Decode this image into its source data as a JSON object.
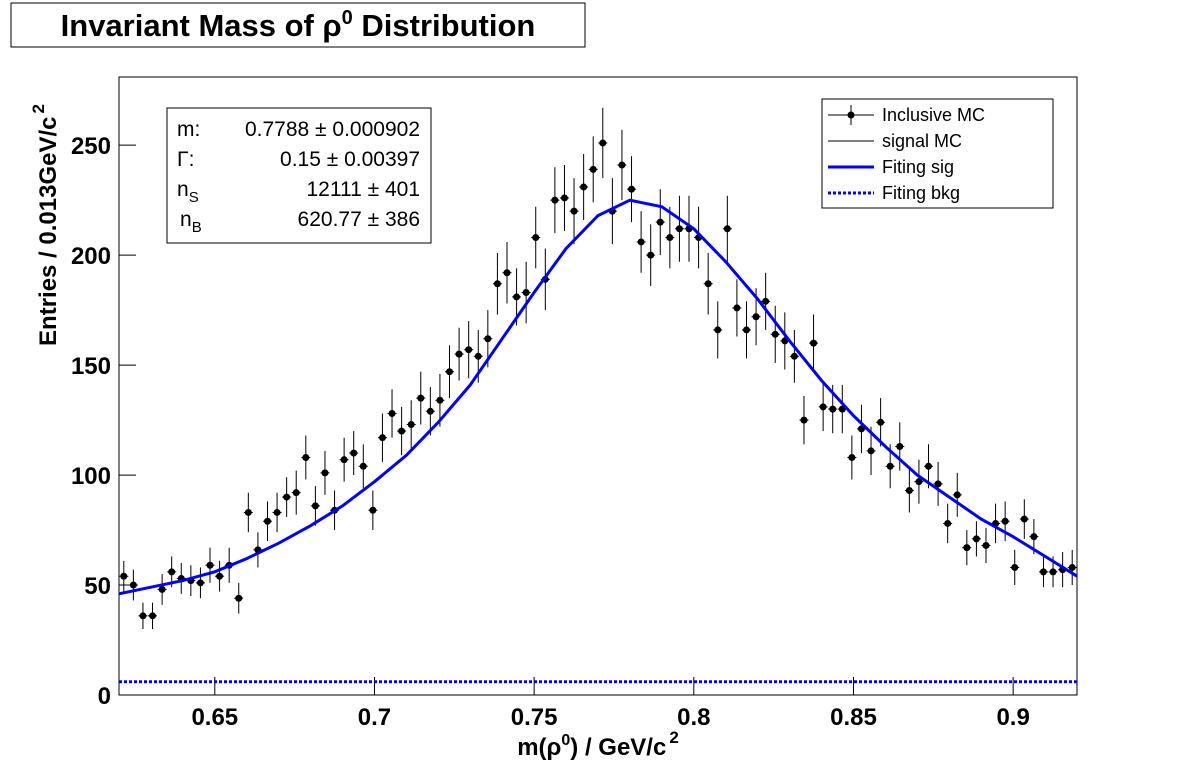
{
  "chart_data": {
    "type": "scatter",
    "title": [
      "Invariant Mass of  ρ",
      "0",
      " Distribution"
    ],
    "x_label": [
      "m(ρ",
      "0",
      ") / GeV/c",
      "2"
    ],
    "y_label": [
      "Entries / 0.013GeV/c",
      "2"
    ],
    "xlim": [
      0.62,
      0.92
    ],
    "ylim": [
      0,
      281
    ],
    "xticks": [
      0.65,
      0.7,
      0.75,
      0.8,
      0.85,
      0.9
    ],
    "yticks": [
      0,
      50,
      100,
      150,
      200,
      250
    ],
    "legend_position": "upper right",
    "series": [
      {
        "name": "Inclusive MC",
        "color": "#000000",
        "style": "points",
        "x": [
          0.6215,
          0.6245,
          0.6275,
          0.6305,
          0.6335,
          0.6365,
          0.6395,
          0.6425,
          0.6455,
          0.6485,
          0.6515,
          0.6545,
          0.6575,
          0.6605,
          0.6635,
          0.6665,
          0.6695,
          0.6725,
          0.6755,
          0.6785,
          0.6815,
          0.6845,
          0.6875,
          0.6905,
          0.6935,
          0.6965,
          0.6995,
          0.7025,
          0.7055,
          0.7085,
          0.7115,
          0.7145,
          0.7175,
          0.7205,
          0.7235,
          0.7265,
          0.7295,
          0.7325,
          0.7355,
          0.7385,
          0.7415,
          0.7445,
          0.7475,
          0.7505,
          0.7535,
          0.7565,
          0.7595,
          0.7625,
          0.7655,
          0.7685,
          0.7715,
          0.7745,
          0.7775,
          0.7805,
          0.7835,
          0.7865,
          0.7895,
          0.7925,
          0.7955,
          0.7985,
          0.8015,
          0.8045,
          0.8075,
          0.8105,
          0.8135,
          0.8165,
          0.8195,
          0.8225,
          0.8255,
          0.8285,
          0.8315,
          0.8345,
          0.8375,
          0.8405,
          0.8435,
          0.8465,
          0.8495,
          0.8525,
          0.8555,
          0.8585,
          0.8615,
          0.8645,
          0.8675,
          0.8705,
          0.8735,
          0.8765,
          0.8795,
          0.8825,
          0.8855,
          0.8885,
          0.8915,
          0.8945,
          0.8975,
          0.9005,
          0.9035,
          0.9065,
          0.9095,
          0.9125,
          0.9155,
          0.9185
        ],
        "values": [
          54,
          50,
          36,
          36,
          48,
          56,
          53,
          52,
          51,
          59,
          54,
          59,
          44,
          83,
          66,
          79,
          83,
          90,
          92,
          108,
          86,
          101,
          84,
          107,
          110,
          104,
          84,
          117,
          128,
          120,
          123,
          135,
          129,
          134,
          147,
          155,
          157,
          154,
          162,
          187,
          192,
          181,
          183,
          208,
          189,
          225,
          226,
          220,
          231,
          239,
          251,
          220,
          241,
          230,
          206,
          200,
          215,
          208,
          212,
          212,
          208,
          187,
          166,
          212,
          176,
          166,
          172,
          179,
          164,
          161,
          154,
          125,
          160,
          131,
          130,
          130,
          108,
          121,
          111,
          124,
          104,
          113,
          93,
          97,
          104,
          96,
          78,
          91,
          67,
          71,
          68,
          78,
          79,
          58,
          80,
          72,
          56,
          56,
          57,
          58
        ],
        "errors": [
          7,
          7,
          6,
          6,
          7,
          7,
          7,
          7,
          7,
          8,
          7,
          8,
          7,
          9,
          8,
          9,
          9,
          9,
          10,
          10,
          9,
          10,
          9,
          10,
          10,
          10,
          9,
          11,
          11,
          11,
          11,
          12,
          11,
          12,
          12,
          12,
          13,
          12,
          13,
          14,
          14,
          13,
          14,
          14,
          14,
          15,
          15,
          15,
          15,
          15,
          16,
          15,
          16,
          15,
          14,
          14,
          15,
          14,
          15,
          15,
          14,
          14,
          13,
          15,
          13,
          13,
          13,
          13,
          13,
          13,
          12,
          11,
          13,
          11,
          11,
          11,
          10,
          11,
          11,
          11,
          10,
          11,
          10,
          10,
          10,
          10,
          9,
          10,
          8,
          8,
          8,
          9,
          9,
          8,
          9,
          8,
          7,
          7,
          8,
          8
        ]
      },
      {
        "name": "signal MC",
        "color": "#000000",
        "style": "thin",
        "x": [],
        "values": []
      },
      {
        "name": "Fiting sig",
        "color": "#0000ff",
        "style": "line",
        "x": [
          0.62,
          0.63,
          0.64,
          0.65,
          0.66,
          0.67,
          0.68,
          0.69,
          0.7,
          0.71,
          0.72,
          0.73,
          0.74,
          0.75,
          0.76,
          0.77,
          0.78,
          0.79,
          0.8,
          0.81,
          0.82,
          0.83,
          0.84,
          0.85,
          0.86,
          0.87,
          0.88,
          0.89,
          0.9,
          0.91,
          0.92
        ],
        "values": [
          46,
          49,
          52,
          56,
          62,
          69,
          77,
          86,
          97,
          109,
          124,
          141,
          162,
          183,
          203,
          218,
          225,
          222,
          212,
          197,
          180,
          161,
          143,
          127,
          113,
          100,
          90,
          80,
          72,
          63,
          54
        ]
      },
      {
        "name": "Fiting bkg",
        "color": "#0000ff",
        "style": "dotted",
        "x": [
          0.62,
          0.92
        ],
        "values": [
          6,
          6
        ]
      }
    ],
    "stats": [
      {
        "label": "m:",
        "sub": "",
        "value": "0.7788 ± 0.000902"
      },
      {
        "label": "Γ:",
        "sub": "",
        "value": "0.15 ± 0.00397"
      },
      {
        "label": "n",
        "sub": "S",
        "value": "12111 ± 401"
      },
      {
        "label": "n",
        "sub": "B",
        "value": "620.77 ± 386"
      }
    ]
  }
}
